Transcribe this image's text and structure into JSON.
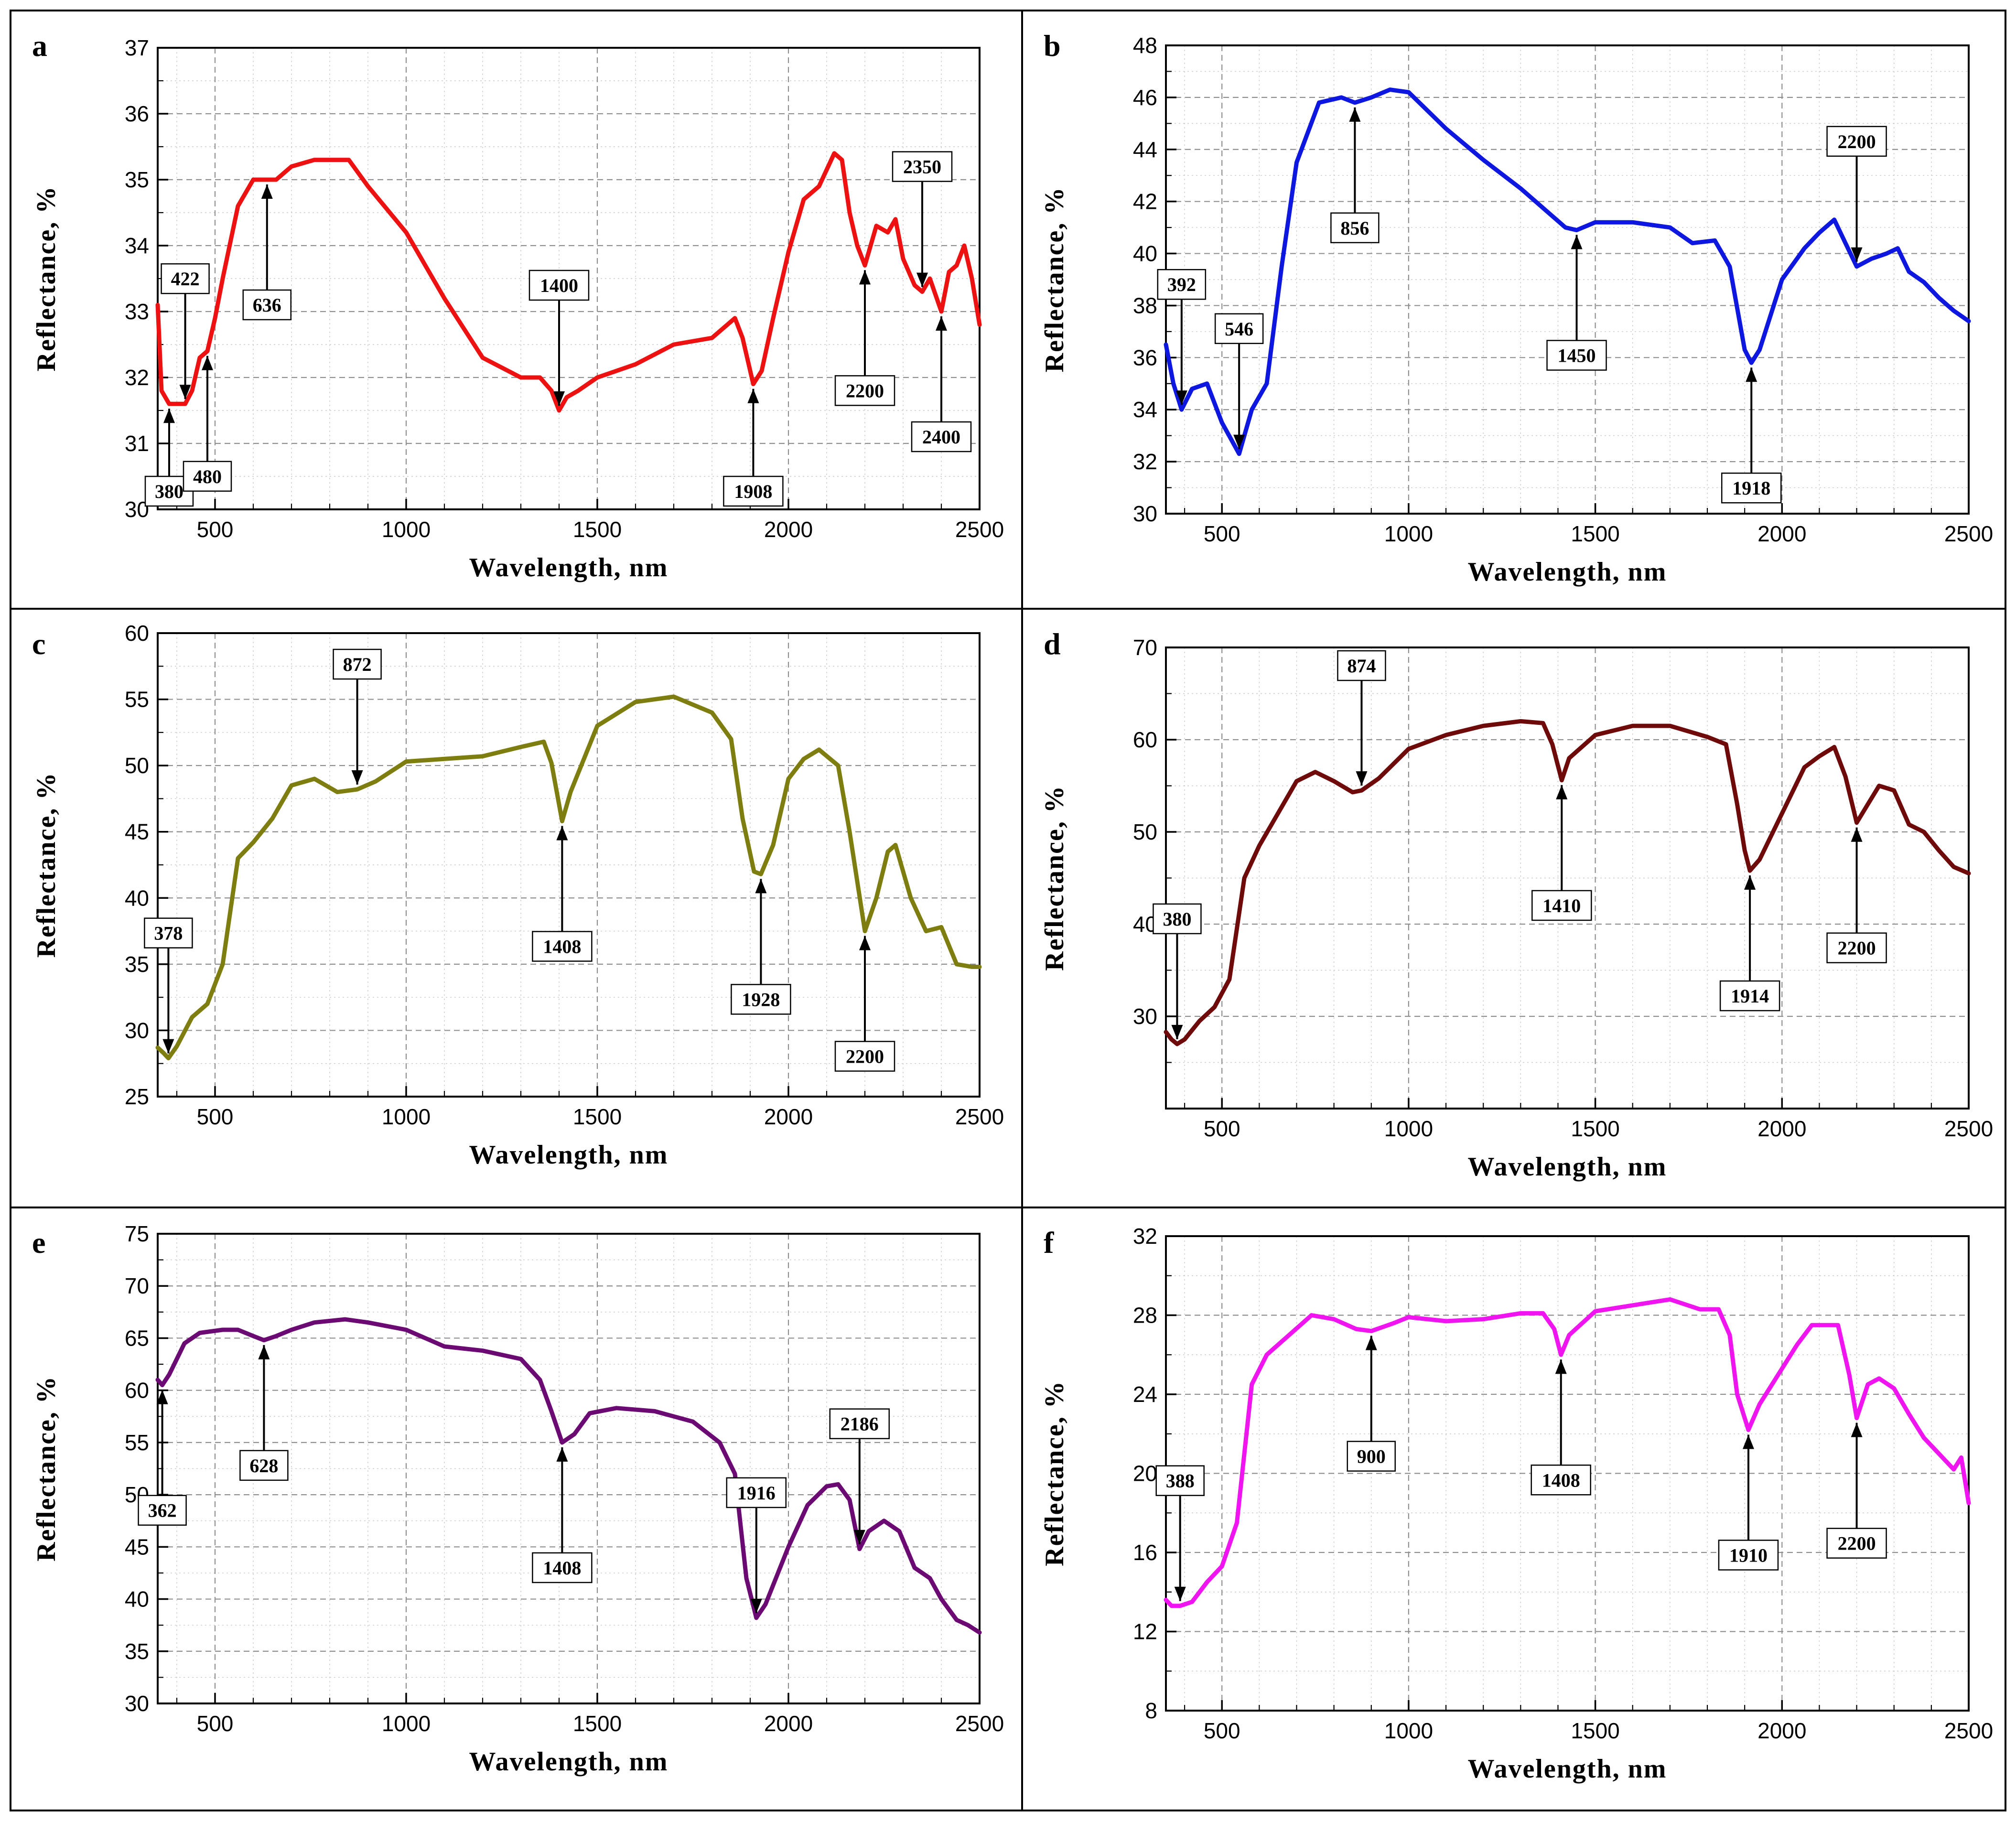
{
  "figure": {
    "x_axis_title": "Wavelength, nm",
    "y_axis_title": "Reflectance, %"
  },
  "chart_data": [
    {
      "panel": "a",
      "type": "line",
      "color": "#ee1111",
      "xlabel": "Wavelength, nm",
      "ylabel": "Reflectance, %",
      "xlim": [
        350,
        2500
      ],
      "ylim": [
        30,
        37
      ],
      "xticks": [
        500,
        1000,
        1500,
        2000,
        2500
      ],
      "yticks": [
        30,
        31,
        32,
        33,
        34,
        35,
        36,
        37
      ],
      "x": [
        350,
        360,
        380,
        400,
        422,
        440,
        460,
        480,
        500,
        520,
        560,
        600,
        636,
        660,
        700,
        760,
        800,
        850,
        900,
        1000,
        1100,
        1200,
        1300,
        1350,
        1380,
        1400,
        1420,
        1450,
        1500,
        1600,
        1700,
        1800,
        1860,
        1880,
        1908,
        1930,
        1960,
        2000,
        2040,
        2080,
        2120,
        2140,
        2160,
        2180,
        2200,
        2230,
        2260,
        2280,
        2300,
        2330,
        2350,
        2370,
        2400,
        2420,
        2440,
        2460,
        2480,
        2500
      ],
      "y": [
        33.1,
        31.8,
        31.6,
        31.6,
        31.6,
        31.8,
        32.3,
        32.4,
        32.9,
        33.5,
        34.6,
        35.0,
        35.0,
        35.0,
        35.2,
        35.3,
        35.3,
        35.3,
        34.9,
        34.2,
        33.2,
        32.3,
        32.0,
        32.0,
        31.8,
        31.5,
        31.7,
        31.8,
        32.0,
        32.2,
        32.5,
        32.6,
        32.9,
        32.6,
        31.9,
        32.1,
        32.9,
        33.9,
        34.7,
        34.9,
        35.4,
        35.3,
        34.5,
        34.0,
        33.7,
        34.3,
        34.2,
        34.4,
        33.8,
        33.4,
        33.3,
        33.5,
        33.0,
        33.6,
        33.7,
        34.0,
        33.5,
        32.8
      ],
      "annotations": [
        {
          "label": "380",
          "x": 380,
          "direction": "up"
        },
        {
          "label": "422",
          "x": 422,
          "direction": "down"
        },
        {
          "label": "480",
          "x": 480,
          "direction": "up"
        },
        {
          "label": "636",
          "x": 636,
          "direction": "up"
        },
        {
          "label": "1400",
          "x": 1400,
          "direction": "down"
        },
        {
          "label": "1908",
          "x": 1908,
          "direction": "up"
        },
        {
          "label": "2200",
          "x": 2200,
          "direction": "up"
        },
        {
          "label": "2350",
          "x": 2350,
          "direction": "down"
        },
        {
          "label": "2400",
          "x": 2400,
          "direction": "up"
        }
      ]
    },
    {
      "panel": "b",
      "type": "line",
      "color": "#0d17e0",
      "xlabel": "Wavelength, nm",
      "ylabel": "Reflectance, %",
      "xlim": [
        350,
        2500
      ],
      "ylim": [
        30,
        48
      ],
      "xticks": [
        500,
        1000,
        1500,
        2000,
        2500
      ],
      "yticks": [
        30,
        32,
        34,
        36,
        38,
        40,
        42,
        44,
        46,
        48
      ],
      "x": [
        350,
        370,
        392,
        420,
        460,
        500,
        546,
        580,
        620,
        660,
        700,
        760,
        820,
        856,
        900,
        950,
        1000,
        1050,
        1100,
        1200,
        1300,
        1380,
        1420,
        1450,
        1500,
        1600,
        1700,
        1760,
        1820,
        1860,
        1900,
        1918,
        1940,
        2000,
        2060,
        2100,
        2140,
        2170,
        2200,
        2240,
        2280,
        2310,
        2340,
        2380,
        2420,
        2460,
        2500
      ],
      "y": [
        36.5,
        35.0,
        34.0,
        34.8,
        35.0,
        33.5,
        32.3,
        34.0,
        35.0,
        39.5,
        43.5,
        45.8,
        46.0,
        45.8,
        46.0,
        46.3,
        46.2,
        45.5,
        44.8,
        43.6,
        42.5,
        41.5,
        41.0,
        40.9,
        41.2,
        41.2,
        41.0,
        40.4,
        40.5,
        39.5,
        36.3,
        35.8,
        36.3,
        39.0,
        40.2,
        40.8,
        41.3,
        40.4,
        39.5,
        39.8,
        40.0,
        40.2,
        39.3,
        38.9,
        38.3,
        37.8,
        37.4
      ],
      "annotations": [
        {
          "label": "392",
          "x": 392,
          "direction": "down"
        },
        {
          "label": "546",
          "x": 546,
          "direction": "down"
        },
        {
          "label": "856",
          "x": 856,
          "direction": "up"
        },
        {
          "label": "1450",
          "x": 1450,
          "direction": "up"
        },
        {
          "label": "1918",
          "x": 1918,
          "direction": "up"
        },
        {
          "label": "2200",
          "x": 2200,
          "direction": "down"
        }
      ]
    },
    {
      "panel": "c",
      "type": "line",
      "color": "#7d7d10",
      "xlabel": "Wavelength, nm",
      "ylabel": "Reflectance, %",
      "xlim": [
        350,
        2500
      ],
      "ylim": [
        25,
        60
      ],
      "xticks": [
        500,
        1000,
        1500,
        2000,
        2500
      ],
      "yticks": [
        25,
        30,
        35,
        40,
        45,
        50,
        55,
        60
      ],
      "x": [
        350,
        365,
        378,
        400,
        440,
        480,
        520,
        560,
        600,
        650,
        700,
        760,
        820,
        872,
        920,
        1000,
        1100,
        1200,
        1300,
        1360,
        1380,
        1408,
        1430,
        1500,
        1600,
        1700,
        1800,
        1850,
        1880,
        1910,
        1928,
        1960,
        2000,
        2040,
        2080,
        2130,
        2160,
        2200,
        2230,
        2260,
        2280,
        2320,
        2360,
        2400,
        2440,
        2480,
        2500
      ],
      "y": [
        28.7,
        28.3,
        27.9,
        28.8,
        31.0,
        32.0,
        35.0,
        43.0,
        44.2,
        46.0,
        48.5,
        49.0,
        48.0,
        48.2,
        48.8,
        50.3,
        50.5,
        50.7,
        51.4,
        51.8,
        50.2,
        45.8,
        48.0,
        53.0,
        54.8,
        55.2,
        54.0,
        52.0,
        46.0,
        42.0,
        41.8,
        44.0,
        49.0,
        50.5,
        51.2,
        50.0,
        45.0,
        37.5,
        40.0,
        43.5,
        44.0,
        40.0,
        37.5,
        37.8,
        35.0,
        34.8,
        34.8
      ],
      "annotations": [
        {
          "label": "378",
          "x": 378,
          "direction": "down"
        },
        {
          "label": "872",
          "x": 872,
          "direction": "down"
        },
        {
          "label": "1408",
          "x": 1408,
          "direction": "up"
        },
        {
          "label": "1928",
          "x": 1928,
          "direction": "up"
        },
        {
          "label": "2200",
          "x": 2200,
          "direction": "up"
        }
      ]
    },
    {
      "panel": "d",
      "type": "line",
      "color": "#6e0a0a",
      "xlabel": "Wavelength, nm",
      "ylabel": "Reflectance, %",
      "xlim": [
        350,
        2500
      ],
      "ylim": [
        20,
        70
      ],
      "xticks": [
        500,
        1000,
        1500,
        2000,
        2500
      ],
      "yticks": [
        30,
        40,
        50,
        60,
        70
      ],
      "x": [
        350,
        365,
        380,
        400,
        440,
        480,
        520,
        560,
        600,
        650,
        700,
        750,
        800,
        850,
        874,
        920,
        1000,
        1100,
        1200,
        1300,
        1360,
        1385,
        1410,
        1430,
        1500,
        1600,
        1700,
        1800,
        1850,
        1880,
        1900,
        1914,
        1940,
        2000,
        2060,
        2100,
        2140,
        2170,
        2200,
        2230,
        2260,
        2300,
        2340,
        2380,
        2420,
        2460,
        2500
      ],
      "y": [
        28.3,
        27.5,
        27.0,
        27.5,
        29.5,
        31.0,
        34.0,
        45.0,
        48.5,
        52.0,
        55.5,
        56.5,
        55.5,
        54.3,
        54.5,
        55.8,
        59.0,
        60.5,
        61.5,
        62.0,
        61.8,
        59.5,
        55.6,
        58.0,
        60.5,
        61.5,
        61.5,
        60.3,
        59.5,
        53.0,
        48.0,
        45.8,
        47.0,
        52.0,
        57.0,
        58.2,
        59.2,
        56.0,
        51.0,
        53.0,
        55.0,
        54.5,
        50.8,
        50.0,
        48.0,
        46.2,
        45.5
      ],
      "annotations": [
        {
          "label": "380",
          "x": 380,
          "direction": "down"
        },
        {
          "label": "874",
          "x": 874,
          "direction": "down"
        },
        {
          "label": "1410",
          "x": 1410,
          "direction": "up"
        },
        {
          "label": "1914",
          "x": 1914,
          "direction": "up"
        },
        {
          "label": "2200",
          "x": 2200,
          "direction": "up"
        }
      ]
    },
    {
      "panel": "e",
      "type": "line",
      "color": "#6b0a72",
      "xlabel": "Wavelength, nm",
      "ylabel": "Reflectance, %",
      "xlim": [
        350,
        2500
      ],
      "ylim": [
        30,
        75
      ],
      "xticks": [
        500,
        1000,
        1500,
        2000,
        2500
      ],
      "yticks": [
        30,
        35,
        40,
        45,
        50,
        55,
        60,
        65,
        70,
        75
      ],
      "x": [
        350,
        362,
        380,
        420,
        460,
        520,
        560,
        600,
        628,
        660,
        700,
        760,
        840,
        900,
        1000,
        1100,
        1200,
        1300,
        1350,
        1380,
        1408,
        1440,
        1480,
        1550,
        1650,
        1750,
        1820,
        1860,
        1890,
        1916,
        1940,
        2000,
        2050,
        2100,
        2130,
        2160,
        2186,
        2210,
        2250,
        2290,
        2330,
        2370,
        2400,
        2440,
        2470,
        2500
      ],
      "y": [
        61.0,
        60.5,
        61.5,
        64.5,
        65.5,
        65.8,
        65.8,
        65.2,
        64.8,
        65.2,
        65.8,
        66.5,
        66.8,
        66.5,
        65.8,
        64.2,
        63.8,
        63.0,
        61.0,
        58.0,
        55.0,
        55.8,
        57.8,
        58.3,
        58.0,
        57.0,
        55.0,
        52.0,
        42.0,
        38.2,
        39.5,
        45.0,
        49.0,
        50.8,
        51.0,
        49.5,
        44.8,
        46.5,
        47.5,
        46.5,
        43.0,
        42.0,
        40.0,
        38.0,
        37.5,
        36.8
      ],
      "annotations": [
        {
          "label": "362",
          "x": 362,
          "direction": "up"
        },
        {
          "label": "628",
          "x": 628,
          "direction": "up"
        },
        {
          "label": "1408",
          "x": 1408,
          "direction": "up"
        },
        {
          "label": "1916",
          "x": 1916,
          "direction": "down"
        },
        {
          "label": "2186",
          "x": 2186,
          "direction": "down"
        }
      ]
    },
    {
      "panel": "f",
      "type": "line",
      "color": "#f015f0",
      "xlabel": "Wavelength, nm",
      "ylabel": "Reflectance, %",
      "xlim": [
        350,
        2500
      ],
      "ylim": [
        8,
        32
      ],
      "xticks": [
        500,
        1000,
        1500,
        2000,
        2500
      ],
      "yticks": [
        8,
        12,
        16,
        20,
        24,
        28,
        32
      ],
      "x": [
        350,
        365,
        388,
        420,
        460,
        500,
        540,
        580,
        620,
        680,
        740,
        800,
        860,
        900,
        960,
        1000,
        1100,
        1200,
        1300,
        1360,
        1390,
        1408,
        1430,
        1500,
        1600,
        1700,
        1780,
        1830,
        1860,
        1880,
        1910,
        1940,
        1990,
        2040,
        2080,
        2110,
        2150,
        2180,
        2200,
        2230,
        2260,
        2300,
        2340,
        2380,
        2420,
        2460,
        2480,
        2500
      ],
      "y": [
        13.6,
        13.3,
        13.3,
        13.5,
        14.5,
        15.3,
        17.5,
        24.5,
        26.0,
        27.0,
        28.0,
        27.8,
        27.3,
        27.2,
        27.6,
        27.9,
        27.7,
        27.8,
        28.1,
        28.1,
        27.3,
        26.0,
        27.0,
        28.2,
        28.5,
        28.8,
        28.3,
        28.3,
        27.0,
        24.0,
        22.2,
        23.5,
        25.0,
        26.5,
        27.5,
        27.5,
        27.5,
        25.0,
        22.8,
        24.5,
        24.8,
        24.3,
        23.0,
        21.8,
        21.0,
        20.2,
        20.8,
        18.5
      ],
      "annotations": [
        {
          "label": "388",
          "x": 388,
          "direction": "down"
        },
        {
          "label": "900",
          "x": 900,
          "direction": "up"
        },
        {
          "label": "1408",
          "x": 1408,
          "direction": "up"
        },
        {
          "label": "1910",
          "x": 1910,
          "direction": "up"
        },
        {
          "label": "2200",
          "x": 2200,
          "direction": "up"
        }
      ]
    }
  ]
}
